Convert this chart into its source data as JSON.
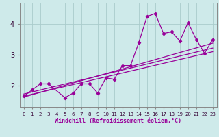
{
  "xlabel": "Windchill (Refroidissement éolien,°C)",
  "x_data": [
    0,
    1,
    2,
    3,
    5,
    6,
    7,
    8,
    9,
    10,
    11,
    12,
    13,
    14,
    15,
    16,
    17,
    18,
    19,
    20,
    21,
    22,
    23
  ],
  "y_data": [
    1.65,
    1.85,
    2.05,
    2.05,
    1.6,
    1.75,
    2.05,
    2.05,
    1.75,
    2.25,
    2.2,
    2.65,
    2.65,
    3.4,
    4.25,
    4.35,
    3.7,
    3.75,
    3.45,
    4.05,
    3.5,
    3.05,
    3.5
  ],
  "trend1_x": [
    0,
    23
  ],
  "trend1_y": [
    1.62,
    3.38
  ],
  "trend2_x": [
    0,
    23
  ],
  "trend2_y": [
    1.72,
    3.22
  ],
  "trend3_x": [
    0,
    23
  ],
  "trend3_y": [
    1.65,
    3.1
  ],
  "line_color": "#990099",
  "bg_color": "#ceeaea",
  "grid_color": "#aacccc",
  "yticks": [
    2,
    3,
    4
  ],
  "xticks": [
    0,
    1,
    2,
    3,
    4,
    5,
    6,
    7,
    8,
    9,
    10,
    11,
    12,
    13,
    14,
    15,
    16,
    17,
    18,
    19,
    20,
    21,
    22,
    23
  ],
  "xlim": [
    -0.5,
    23.5
  ],
  "ylim": [
    1.3,
    4.7
  ]
}
